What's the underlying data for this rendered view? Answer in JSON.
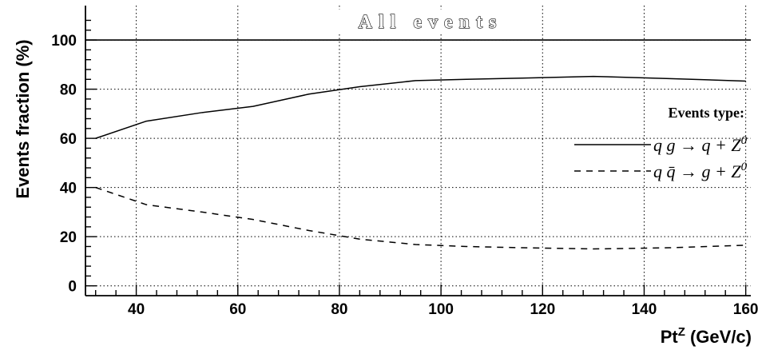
{
  "chart_data": {
    "type": "line",
    "title": "All events",
    "xlabel_main": "Pt",
    "xlabel_sup": "Z",
    "xlabel_units": " (GeV/c)",
    "ylabel": "Events fraction (%)",
    "xlim": [
      30,
      161
    ],
    "ylim": [
      -4,
      114
    ],
    "xticks": [
      40,
      60,
      80,
      100,
      120,
      140,
      160
    ],
    "yticks": [
      0,
      20,
      40,
      60,
      80,
      100
    ],
    "reference_line": 100,
    "grid": true,
    "legend": {
      "title": "Events type:",
      "placement": "right"
    },
    "series": [
      {
        "name": "q g → q + Z0",
        "legend_parts": {
          "lhs": "q g →",
          "rhs": "q + Z",
          "sup": "0"
        },
        "style": "solid",
        "color": "#000000",
        "x": [
          32,
          42,
          53,
          63,
          74,
          84,
          95,
          105,
          116,
          130,
          145,
          160
        ],
        "y": [
          60,
          67,
          70.5,
          73,
          78,
          81,
          83.5,
          84,
          84.5,
          85.2,
          84.3,
          83.3
        ]
      },
      {
        "name": "q q̄ → g + Z0",
        "legend_parts": {
          "lhs": "q q̄ →",
          "rhs": "g + Z",
          "sup": "0"
        },
        "style": "dashed",
        "color": "#000000",
        "x": [
          32,
          42,
          53,
          63,
          74,
          84,
          95,
          105,
          116,
          130,
          145,
          160
        ],
        "y": [
          40,
          33,
          30,
          27,
          22.5,
          19,
          16.8,
          16,
          15.5,
          15,
          15.5,
          16.5
        ]
      }
    ]
  }
}
